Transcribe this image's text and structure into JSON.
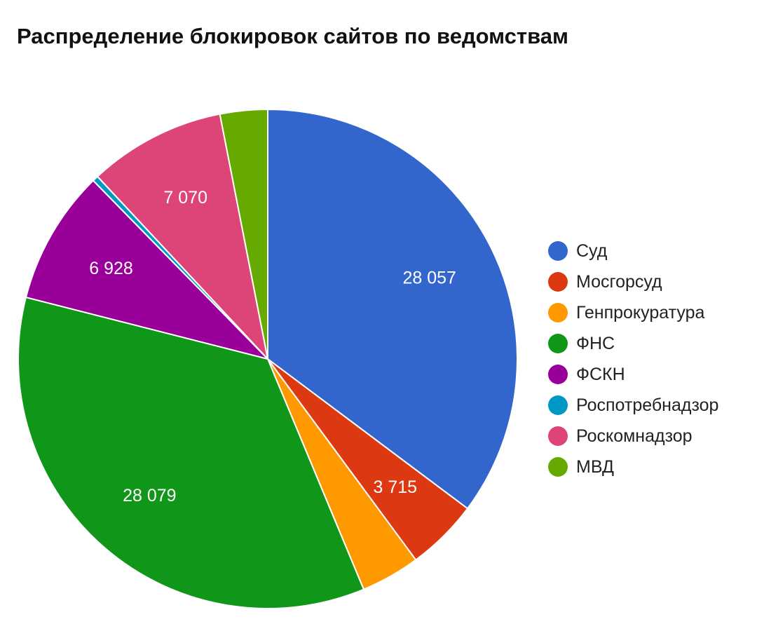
{
  "chart_data": {
    "type": "pie",
    "title": "Распределение блокировок сайтов по ведомствам",
    "series": [
      {
        "name": "Суд",
        "value": 28057,
        "label": "28 057",
        "color": "#3366cc"
      },
      {
        "name": "Мосгорсуд",
        "value": 3715,
        "label": "3 715",
        "color": "#dc3912"
      },
      {
        "name": "Генпрокуратура",
        "value": 3050,
        "label": "",
        "color": "#ff9900"
      },
      {
        "name": "ФНС",
        "value": 28079,
        "label": "28 079",
        "color": "#109618"
      },
      {
        "name": "ФСКН",
        "value": 6928,
        "label": "6 928",
        "color": "#990099"
      },
      {
        "name": "Роспотребнадзор",
        "value": 300,
        "label": "",
        "color": "#0099c6"
      },
      {
        "name": "Роскомнадзор",
        "value": 7070,
        "label": "7 070",
        "color": "#dd4477"
      },
      {
        "name": "МВД",
        "value": 2450,
        "label": "",
        "color": "#66aa00"
      }
    ],
    "start_angle_deg": 0,
    "direction": "clockwise",
    "legend_position": "right"
  }
}
